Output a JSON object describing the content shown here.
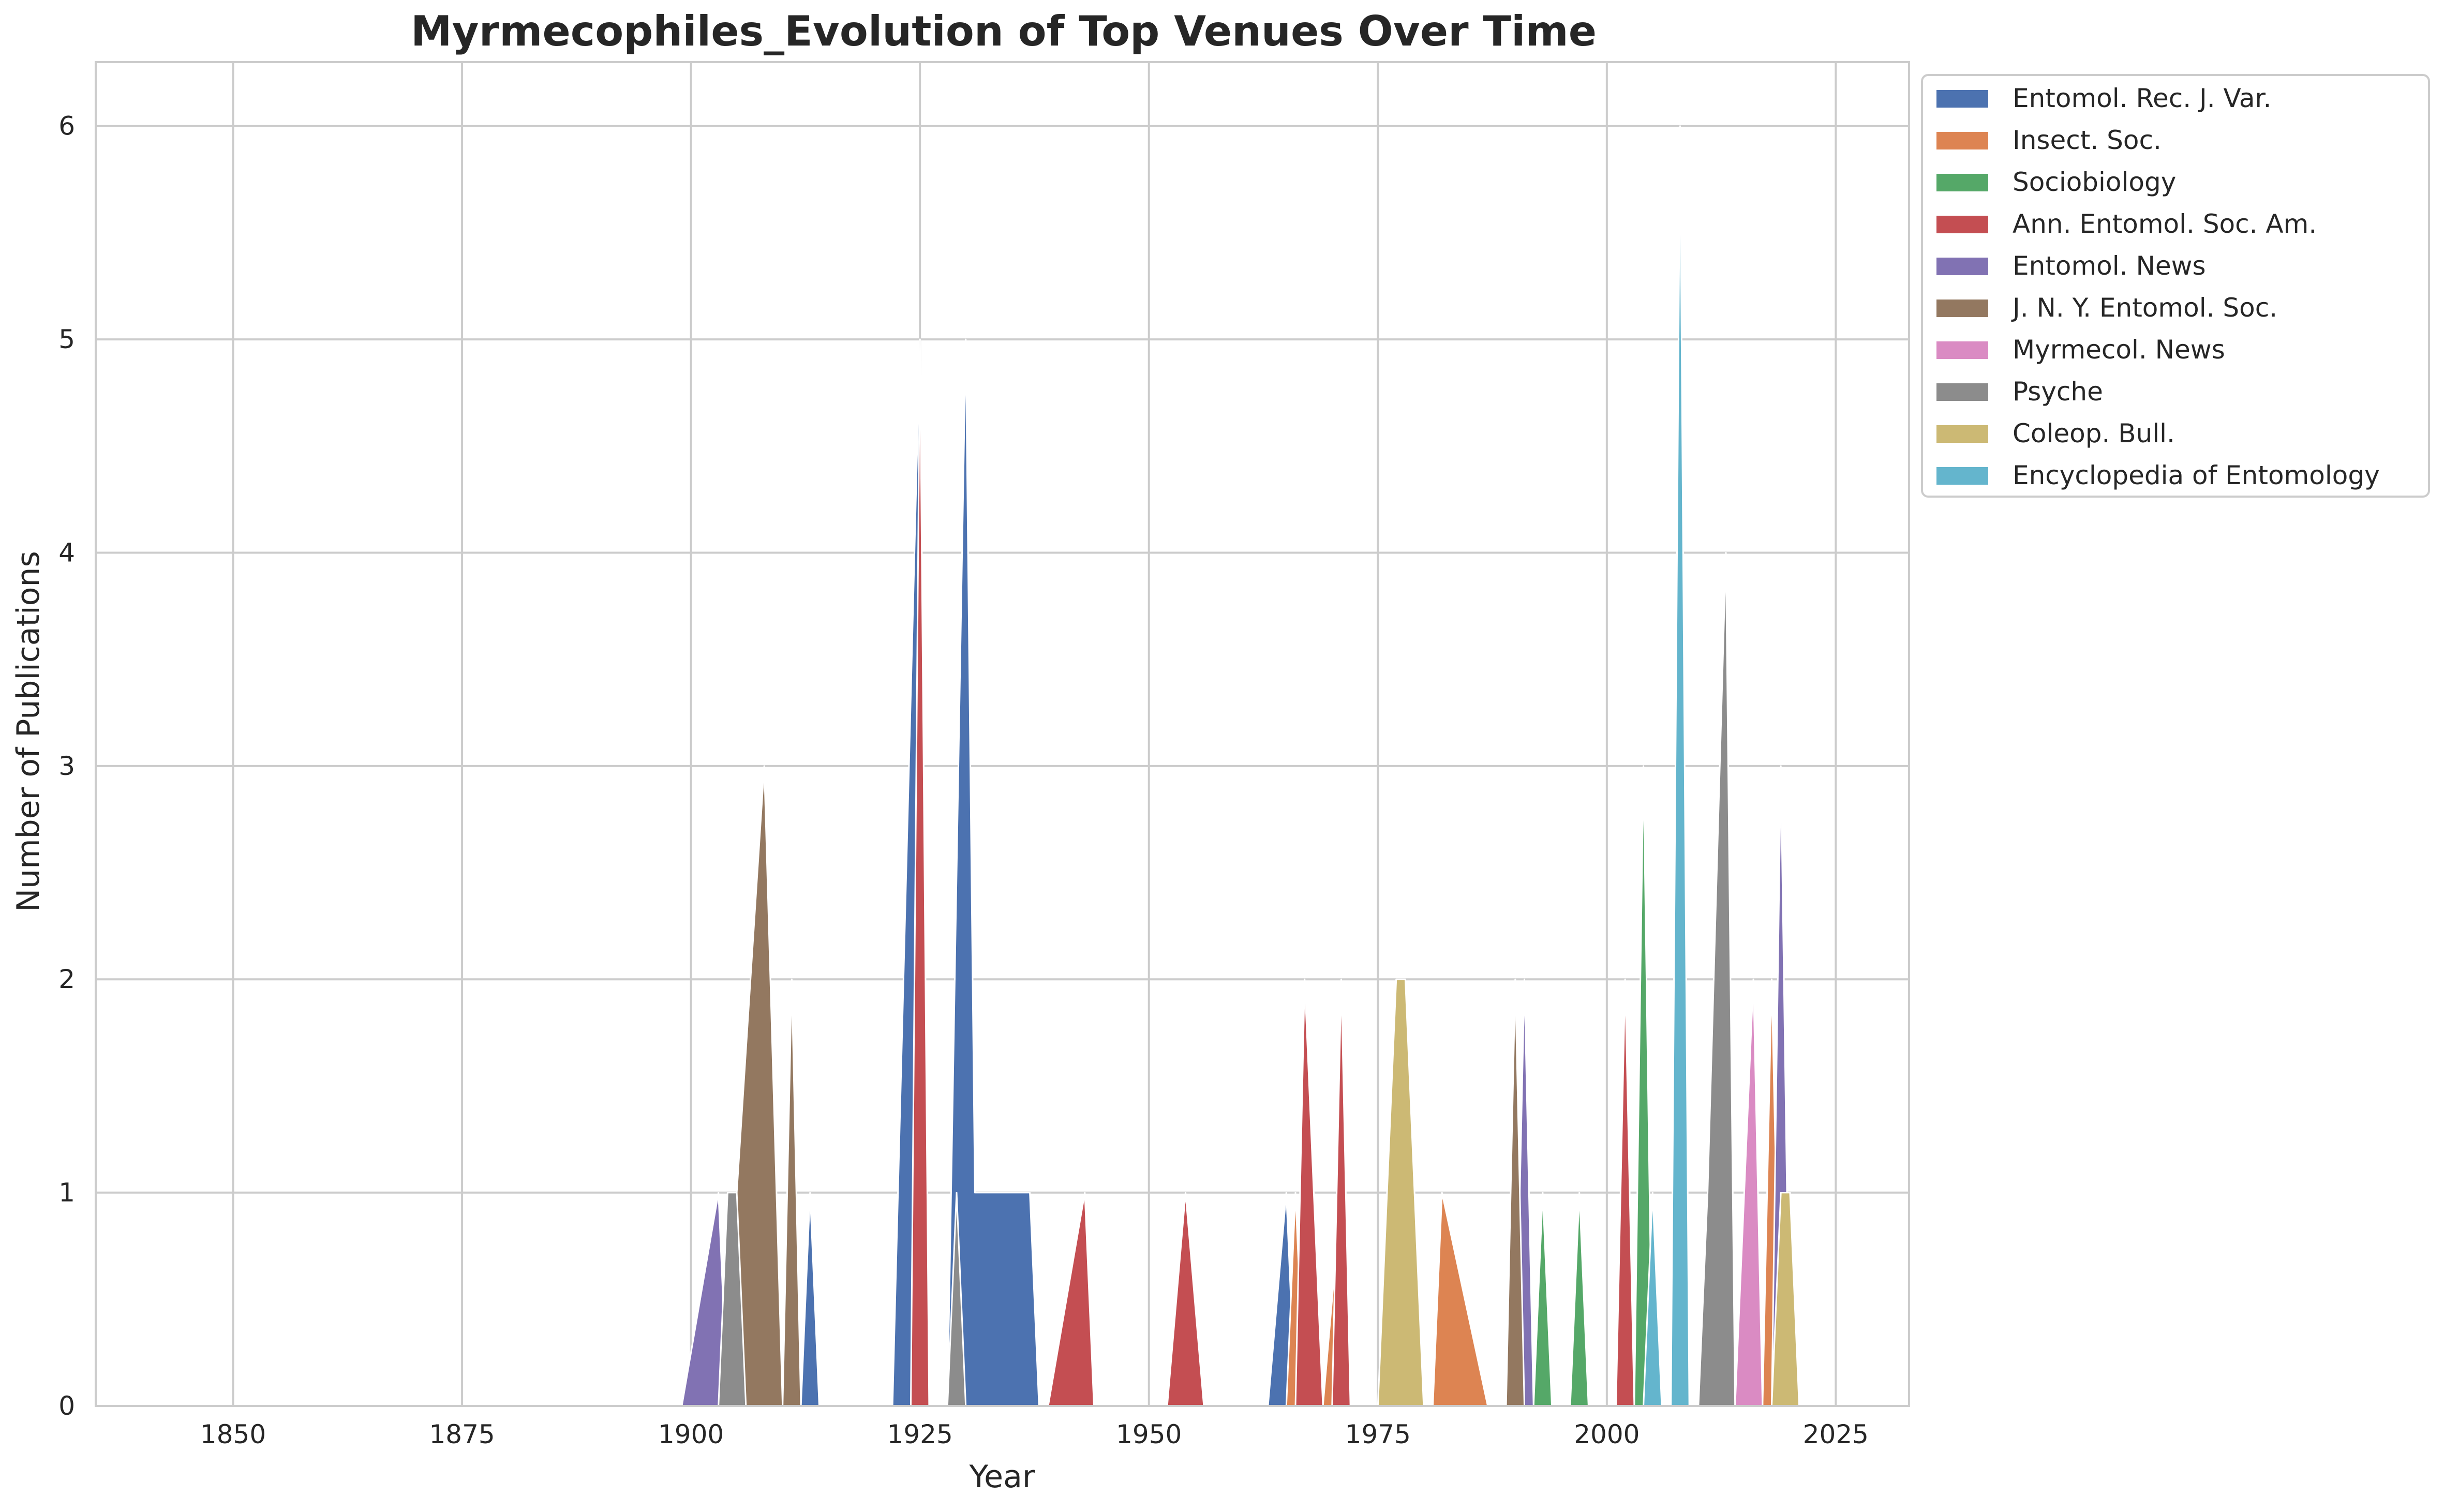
{
  "chart_data": {
    "type": "area",
    "title": "Myrmecophiles_Evolution of Top Venues Over Time",
    "xlabel": "Year",
    "ylabel": "Number of Publications",
    "xlim": [
      1835,
      2033
    ],
    "ylim": [
      0,
      6.3
    ],
    "xticks": [
      1850,
      1875,
      1900,
      1925,
      1950,
      1975,
      2000,
      2025
    ],
    "yticks": [
      0,
      1,
      2,
      3,
      4,
      5,
      6
    ],
    "grid": true,
    "legend_position": "outside-top-right",
    "series": [
      {
        "name": "Entomol. Rec. J. Var.",
        "color": "#4c72b0",
        "points": [
          [
            1910,
            0
          ],
          [
            1911,
            1
          ],
          [
            1912,
            0
          ],
          [
            1913,
            1
          ],
          [
            1914,
            0
          ],
          [
            1922,
            0
          ],
          [
            1925,
            5
          ],
          [
            1926,
            0
          ],
          [
            1928,
            0
          ],
          [
            1930,
            5
          ],
          [
            1931,
            1
          ],
          [
            1937,
            1
          ],
          [
            1938,
            0
          ],
          [
            1963,
            0
          ],
          [
            1965,
            1
          ],
          [
            1966,
            0
          ]
        ]
      },
      {
        "name": "Insect. Soc.",
        "color": "#dd8452",
        "points": [
          [
            1965,
            0
          ],
          [
            1966,
            1
          ],
          [
            1967,
            0
          ],
          [
            1969,
            0
          ],
          [
            1971,
            1
          ],
          [
            1972,
            0
          ],
          [
            1981,
            0
          ],
          [
            1982,
            1
          ],
          [
            1987,
            0
          ],
          [
            1989,
            0
          ],
          [
            1990,
            1
          ],
          [
            1991,
            0
          ],
          [
            2001,
            0
          ],
          [
            2002,
            1
          ],
          [
            2003,
            0
          ],
          [
            2010,
            0
          ],
          [
            2011,
            1
          ],
          [
            2012,
            0
          ],
          [
            2013,
            2
          ],
          [
            2014,
            0
          ],
          [
            2017,
            0
          ],
          [
            2018,
            2
          ],
          [
            2019,
            0
          ]
        ]
      },
      {
        "name": "Sociobiology",
        "color": "#55a868",
        "points": [
          [
            1978,
            0
          ],
          [
            1979,
            1
          ],
          [
            1980,
            0
          ],
          [
            1992,
            0
          ],
          [
            1993,
            1
          ],
          [
            1994,
            0
          ],
          [
            1996,
            0
          ],
          [
            1997,
            1
          ],
          [
            1998,
            0
          ],
          [
            2003,
            0
          ],
          [
            2004,
            3
          ],
          [
            2005,
            0
          ],
          [
            2007,
            0
          ],
          [
            2008,
            2
          ],
          [
            2009,
            0
          ]
        ]
      },
      {
        "name": "Ann. Entomol. Soc. Am.",
        "color": "#c44e52",
        "points": [
          [
            1924,
            0
          ],
          [
            1925,
            5
          ],
          [
            1926,
            0
          ],
          [
            1939,
            0
          ],
          [
            1943,
            1
          ],
          [
            1944,
            0
          ],
          [
            1952,
            0
          ],
          [
            1954,
            1
          ],
          [
            1956,
            0
          ],
          [
            1966,
            0
          ],
          [
            1967,
            2
          ],
          [
            1969,
            0
          ],
          [
            1970,
            0
          ],
          [
            1971,
            2
          ],
          [
            1972,
            0
          ],
          [
            1989,
            0
          ],
          [
            1990,
            1
          ],
          [
            1991,
            0
          ],
          [
            2001,
            0
          ],
          [
            2002,
            2
          ],
          [
            2003,
            0
          ]
        ]
      },
      {
        "name": "Entomol. News",
        "color": "#8172b3",
        "points": [
          [
            1899,
            0
          ],
          [
            1903,
            1
          ],
          [
            1904,
            0
          ],
          [
            1978,
            0
          ],
          [
            1979,
            1
          ],
          [
            1980,
            0
          ],
          [
            1990,
            0
          ],
          [
            1991,
            2
          ],
          [
            1992,
            0
          ],
          [
            2012,
            0
          ],
          [
            2013,
            3
          ],
          [
            2014,
            0
          ],
          [
            2018,
            0
          ],
          [
            2019,
            3
          ],
          [
            2020,
            0
          ]
        ]
      },
      {
        "name": "J. N. Y. Entomol. Soc.",
        "color": "#937860",
        "points": [
          [
            1904,
            0
          ],
          [
            1905,
            1
          ],
          [
            1908,
            3
          ],
          [
            1910,
            0
          ],
          [
            1911,
            2
          ],
          [
            1912,
            0
          ],
          [
            1989,
            0
          ],
          [
            1990,
            2
          ],
          [
            1991,
            0
          ]
        ]
      },
      {
        "name": "Myrmecol. News",
        "color": "#da8bc3",
        "points": [
          [
            2007,
            0
          ],
          [
            2008,
            3
          ],
          [
            2009,
            0
          ],
          [
            2014,
            0
          ],
          [
            2016,
            2
          ],
          [
            2017,
            0
          ],
          [
            2018,
            0
          ],
          [
            2020,
            1
          ],
          [
            2021,
            0
          ]
        ]
      },
      {
        "name": "Psyche",
        "color": "#8c8c8c",
        "points": [
          [
            1903,
            0
          ],
          [
            1904,
            1
          ],
          [
            1905,
            1
          ],
          [
            1906,
            0
          ],
          [
            1928,
            0
          ],
          [
            1929,
            1
          ],
          [
            1930,
            0
          ],
          [
            2010,
            0
          ],
          [
            2011,
            1
          ],
          [
            2013,
            4
          ],
          [
            2014,
            0
          ]
        ]
      },
      {
        "name": "Coleop. Bull.",
        "color": "#ccb974",
        "points": [
          [
            1975,
            0
          ],
          [
            1977,
            2
          ],
          [
            1978,
            2
          ],
          [
            1980,
            0
          ],
          [
            2018,
            0
          ],
          [
            2019,
            1
          ],
          [
            2020,
            1
          ],
          [
            2021,
            0
          ]
        ]
      },
      {
        "name": "Encyclopedia of Entomology",
        "color": "#64b5cd",
        "points": [
          [
            2004,
            0
          ],
          [
            2005,
            1
          ],
          [
            2006,
            0
          ],
          [
            2007,
            0
          ],
          [
            2008,
            6
          ],
          [
            2009,
            0
          ]
        ]
      }
    ]
  }
}
